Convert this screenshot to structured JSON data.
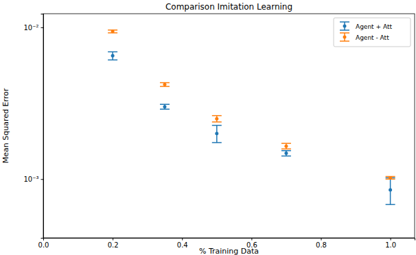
{
  "chart_data": {
    "type": "scatter",
    "title": "Comparison Imitation Learning",
    "x_label": "% Training Data",
    "y_label": "Mean Squared Error",
    "x": [
      0.2,
      0.35,
      0.5,
      0.7,
      1.0
    ],
    "series": [
      {
        "name": "Agent + Att",
        "color": "#1f77b4",
        "marker": "o",
        "values": [
          0.0065,
          0.003,
          0.002,
          0.00148,
          0.00085
        ],
        "errors": [
          0.0004,
          0.00011,
          0.00026,
          6e-05,
          0.00017
        ]
      },
      {
        "name": "Agent - Att",
        "color": "#ff7f0e",
        "marker": "o",
        "values": [
          0.0094,
          0.0042,
          0.0025,
          0.00165,
          0.00102
        ],
        "errors": [
          0.0002,
          0.00012,
          0.00012,
          7e-05,
          2e-05
        ]
      }
    ],
    "xlim": [
      0,
      1.07
    ],
    "xticks": [
      {
        "value": 0,
        "label": "0.0"
      },
      {
        "value": 0.2,
        "label": "0.2"
      },
      {
        "value": 0.4,
        "label": "0.4"
      },
      {
        "value": 0.6,
        "label": "0.6"
      },
      {
        "value": 0.8,
        "label": "0.8"
      },
      {
        "value": 1.0,
        "label": "1.0"
      }
    ],
    "ylim": [
      0.00041,
      0.0123
    ],
    "yticks": [
      {
        "value": 0.001,
        "label": "10⁻³"
      },
      {
        "value": 0.01,
        "label": "10⁻²"
      }
    ],
    "log": "y",
    "grid": false,
    "legend": "upper right"
  }
}
